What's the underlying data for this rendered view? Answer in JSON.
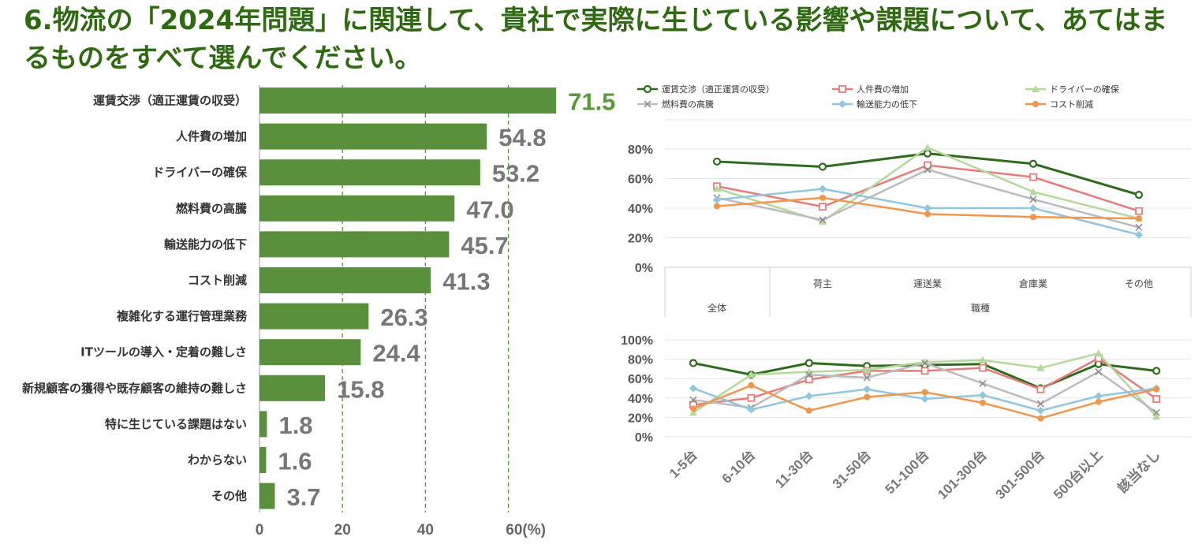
{
  "title": "6.物流の「2024年問題」に関連して、貴社で実際に生じている影響や課題について、あてはまるものをすべて選んでください。",
  "chart_data": [
    {
      "type": "bar",
      "orientation": "horizontal",
      "categories": [
        "運賃交渉（適正運賃の収受）",
        "人件費の増加",
        "ドライバーの確保",
        "燃料費の高騰",
        "輸送能力の低下",
        "コスト削減",
        "複雑化する運行管理業務",
        "ITツールの導入・定着の難しさ",
        "新規顧客の獲得や既存顧客の維持の難しさ",
        "特に生じている課題はない",
        "わからない",
        "その他"
      ],
      "values": [
        71.5,
        54.8,
        53.2,
        47.0,
        45.7,
        41.3,
        26.3,
        24.4,
        15.8,
        1.8,
        1.6,
        3.7
      ],
      "value_labels": [
        "71.5",
        "54.8",
        "53.2",
        "47.0",
        "45.7",
        "41.3",
        "26.3",
        "24.4",
        "15.8",
        "1.8",
        "1.6",
        "3.7"
      ],
      "xlim": [
        0,
        60
      ],
      "xticks": [
        "0",
        "20",
        "40",
        "60(%)"
      ],
      "gridlines": "dashed-vertical",
      "bar_color": "#5a8f3c",
      "highlight_color": "#5b9a3c"
    },
    {
      "type": "line",
      "legend_position": "top",
      "legend": [
        {
          "name": "運賃交渉（適正運賃の収受）",
          "color": "#2e6b1f",
          "marker": "circle-open"
        },
        {
          "name": "人件費の増加",
          "color": "#e57c7c",
          "marker": "square-open"
        },
        {
          "name": "ドライバーの確保",
          "color": "#b5d99c",
          "marker": "triangle"
        },
        {
          "name": "燃料費の高騰",
          "color": "#bcbcbc",
          "marker": "x"
        },
        {
          "name": "輸送能力の低下",
          "color": "#92c6de",
          "marker": "diamond"
        },
        {
          "name": "コスト削減",
          "color": "#f0974d",
          "marker": "circle"
        }
      ],
      "categories": [
        "全体",
        "荷主",
        "運送業",
        "倉庫業",
        "その他"
      ],
      "group_label": "職種",
      "ylim": [
        0,
        80
      ],
      "yticks": [
        "0%",
        "20%",
        "40%",
        "60%",
        "80%"
      ],
      "series": [
        {
          "name": "運賃交渉（適正運賃の収受）",
          "values": [
            71.5,
            68,
            77,
            70,
            49
          ]
        },
        {
          "name": "人件費の増加",
          "values": [
            54.8,
            41,
            69,
            61,
            38
          ]
        },
        {
          "name": "ドライバーの確保",
          "values": [
            53.2,
            31,
            81,
            51,
            33
          ]
        },
        {
          "name": "燃料費の高騰",
          "values": [
            47.0,
            32,
            66,
            46,
            27
          ]
        },
        {
          "name": "輸送能力の低下",
          "values": [
            45.7,
            53,
            40,
            40,
            22
          ]
        },
        {
          "name": "コスト削減",
          "values": [
            41.3,
            47,
            36,
            34,
            33
          ]
        }
      ]
    },
    {
      "type": "line",
      "categories": [
        "1-5台",
        "6-10台",
        "11-30台",
        "31-50台",
        "51-100台",
        "101-300台",
        "301-500台",
        "500台以上",
        "該当なし"
      ],
      "ylim": [
        0,
        100
      ],
      "yticks": [
        "0%",
        "20%",
        "40%",
        "60%",
        "80%",
        "100%"
      ],
      "series": [
        {
          "name": "運賃交渉（適正運賃の収受）",
          "values": [
            76,
            64,
            76,
            73,
            74,
            75,
            50,
            75,
            68
          ]
        },
        {
          "name": "人件費の増加",
          "values": [
            33,
            40,
            59,
            68,
            68,
            71,
            49,
            81,
            39
          ]
        },
        {
          "name": "ドライバーの確保",
          "values": [
            25,
            64,
            67,
            69,
            77,
            79,
            71,
            86,
            21
          ]
        },
        {
          "name": "燃料費の高騰",
          "values": [
            38,
            30,
            64,
            61,
            76,
            55,
            34,
            67,
            25
          ]
        },
        {
          "name": "輸送能力の低下",
          "values": [
            50,
            28,
            42,
            49,
            39,
            43,
            27,
            42,
            50
          ]
        },
        {
          "name": "コスト削減",
          "values": [
            29,
            53,
            27,
            41,
            46,
            35,
            19,
            36,
            49
          ]
        }
      ]
    }
  ]
}
